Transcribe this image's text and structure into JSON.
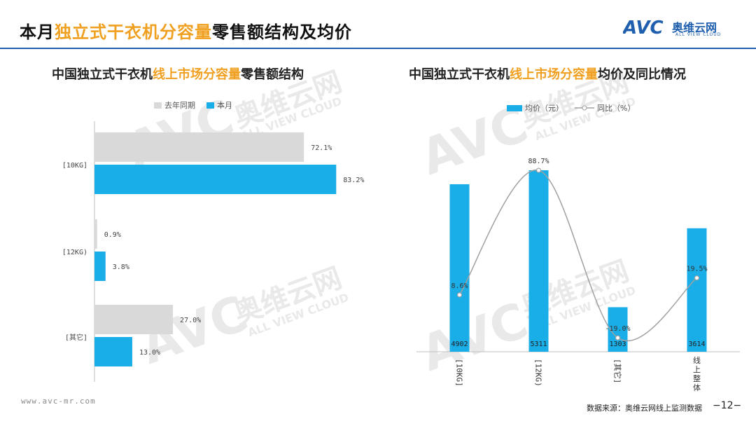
{
  "header": {
    "title_pre": "本月",
    "title_hl": "独立式干衣机分容量",
    "title_post": "零售额结构及均价",
    "logo_text": "奥维云网",
    "logo_sub": "ALL VIEW CLOUD",
    "logo_mark": "AVC"
  },
  "watermarks": [
    "AVC",
    "奥维云网",
    "ALL VIEW CLOUD"
  ],
  "left_chart": {
    "title_pre": "中国独立式干衣机",
    "title_hl": "线上市场分容量",
    "title_post": "零售额结构",
    "legend": [
      "去年同期",
      "本月"
    ]
  },
  "right_chart": {
    "title_pre": "中国独立式干衣机",
    "title_hl": "线上市场分容量",
    "title_post": "均价及同比情况",
    "legend": [
      "均价（元）",
      "同比（%）"
    ]
  },
  "colors": {
    "last_year": "#d9d9d9",
    "this_month": "#19aee8",
    "line": "#a0a0a0",
    "accent": "#f0a020",
    "rule": "#1f5fae"
  },
  "chart_data": [
    {
      "type": "bar",
      "orientation": "horizontal",
      "categories": [
        "[10KG]",
        "[12KG)",
        "[其它]"
      ],
      "series": [
        {
          "name": "去年同期",
          "values": [
            72.1,
            0.9,
            27.0
          ],
          "labels": [
            "72.1%",
            "0.9%",
            "27.0%"
          ]
        },
        {
          "name": "本月",
          "values": [
            83.2,
            3.8,
            13.0
          ],
          "labels": [
            "83.2%",
            "3.8%",
            "13.0%"
          ]
        }
      ],
      "xlim": [
        0,
        100
      ]
    },
    {
      "type": "bar",
      "categories": [
        "[10KG]",
        "[12KG)",
        "[其它]",
        "线上整体"
      ],
      "series": [
        {
          "name": "均价（元）",
          "type": "bar",
          "values": [
            4902,
            5311,
            1303,
            3614
          ],
          "labels": [
            "4902",
            "5311",
            "1303",
            "3614"
          ]
        },
        {
          "name": "同比（%）",
          "type": "line",
          "values": [
            8.6,
            88.7,
            -19.0,
            19.5
          ],
          "labels": [
            "8.6%",
            "88.7%",
            "-19.0%",
            "19.5%"
          ]
        }
      ]
    }
  ],
  "footer": {
    "url": "www.avc-mr.com",
    "source": "数据来源：奥维云网线上监测数据",
    "page": "−12−"
  }
}
